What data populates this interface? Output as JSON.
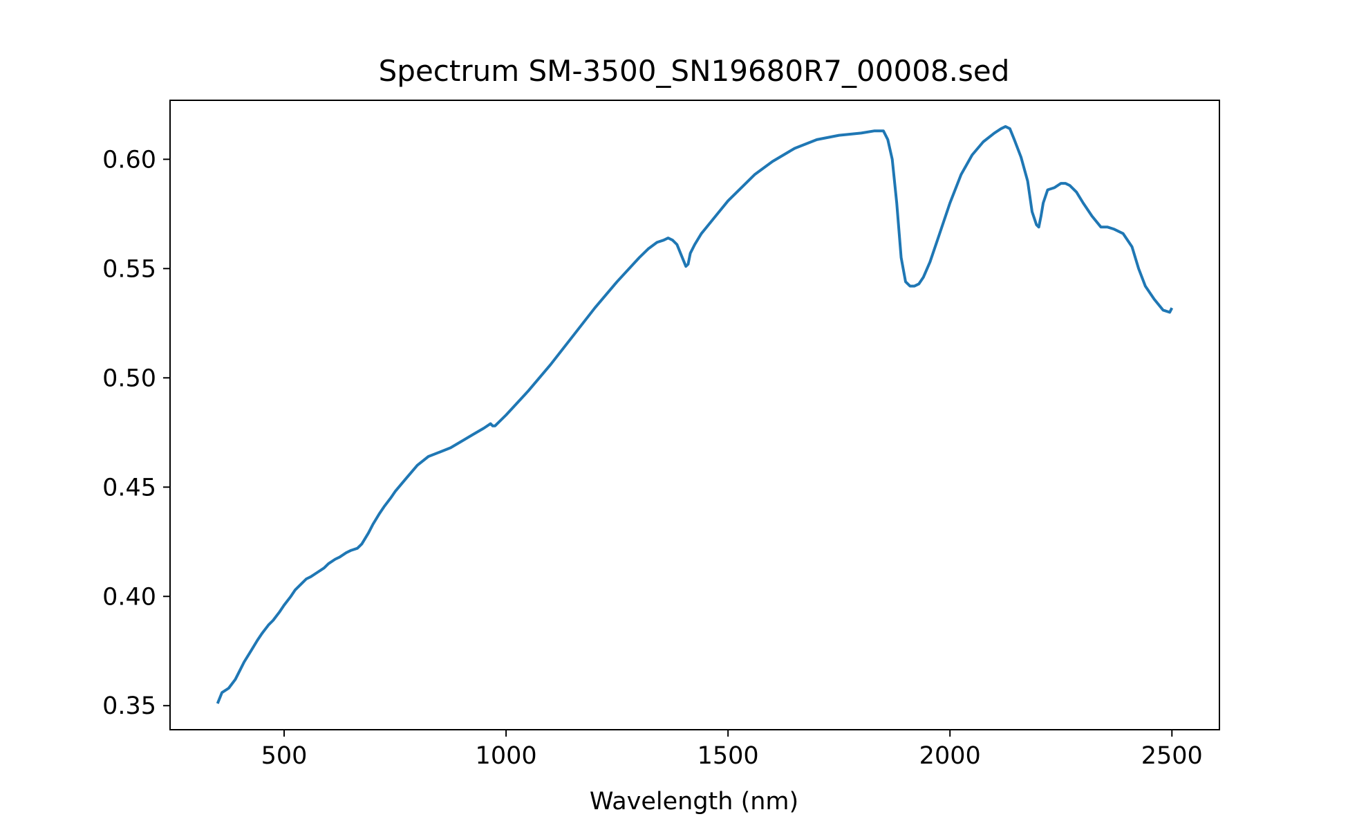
{
  "chart_data": {
    "type": "line",
    "title": "Spectrum SM-3500_SN19680R7_00008.sed",
    "xlabel": "Wavelength (nm)",
    "ylabel": "",
    "xlim": [
      243,
      2607
    ],
    "ylim": [
      0.339,
      0.627
    ],
    "xticks": [
      500,
      1000,
      1500,
      2000,
      2500
    ],
    "xtick_labels": [
      "500",
      "1000",
      "1500",
      "2000",
      "2500"
    ],
    "yticks": [
      0.35,
      0.4,
      0.45,
      0.5,
      0.55,
      0.6
    ],
    "ytick_labels": [
      "0.35",
      "0.40",
      "0.45",
      "0.50",
      "0.55",
      "0.60"
    ],
    "grid": false,
    "legend": "none",
    "colors": {
      "line": "#1f77b4"
    },
    "series": [
      {
        "x": [
          350,
          360,
          375,
          390,
          400,
          410,
          425,
          440,
          450,
          465,
          475,
          490,
          500,
          515,
          525,
          540,
          550,
          560,
          575,
          590,
          600,
          615,
          625,
          640,
          650,
          665,
          675,
          690,
          700,
          715,
          725,
          740,
          750,
          775,
          800,
          825,
          850,
          875,
          900,
          925,
          950,
          965,
          970,
          975,
          1000,
          1050,
          1100,
          1150,
          1200,
          1250,
          1300,
          1320,
          1340,
          1355,
          1365,
          1375,
          1385,
          1395,
          1405,
          1410,
          1415,
          1425,
          1440,
          1460,
          1480,
          1500,
          1530,
          1560,
          1600,
          1650,
          1700,
          1750,
          1800,
          1830,
          1845,
          1850,
          1860,
          1870,
          1880,
          1890,
          1900,
          1910,
          1920,
          1930,
          1940,
          1955,
          1975,
          2000,
          2025,
          2050,
          2075,
          2100,
          2115,
          2125,
          2135,
          2145,
          2160,
          2175,
          2185,
          2195,
          2200,
          2205,
          2210,
          2220,
          2235,
          2250,
          2260,
          2270,
          2285,
          2300,
          2320,
          2340,
          2355,
          2370,
          2390,
          2410,
          2425,
          2440,
          2460,
          2480,
          2495,
          2500
        ],
        "y": [
          0.351,
          0.356,
          0.358,
          0.362,
          0.366,
          0.37,
          0.375,
          0.38,
          0.383,
          0.387,
          0.389,
          0.393,
          0.396,
          0.4,
          0.403,
          0.406,
          0.408,
          0.409,
          0.411,
          0.413,
          0.415,
          0.417,
          0.418,
          0.42,
          0.421,
          0.422,
          0.424,
          0.429,
          0.433,
          0.438,
          0.441,
          0.445,
          0.448,
          0.454,
          0.46,
          0.464,
          0.466,
          0.468,
          0.471,
          0.474,
          0.477,
          0.479,
          0.478,
          0.478,
          0.483,
          0.494,
          0.506,
          0.519,
          0.532,
          0.544,
          0.555,
          0.559,
          0.562,
          0.563,
          0.564,
          0.563,
          0.561,
          0.556,
          0.551,
          0.552,
          0.557,
          0.561,
          0.566,
          0.571,
          0.576,
          0.581,
          0.587,
          0.593,
          0.599,
          0.605,
          0.609,
          0.611,
          0.612,
          0.613,
          0.613,
          0.613,
          0.609,
          0.6,
          0.58,
          0.555,
          0.544,
          0.542,
          0.542,
          0.543,
          0.546,
          0.553,
          0.565,
          0.58,
          0.593,
          0.602,
          0.608,
          0.612,
          0.614,
          0.615,
          0.614,
          0.609,
          0.601,
          0.59,
          0.576,
          0.57,
          0.569,
          0.574,
          0.58,
          0.586,
          0.587,
          0.589,
          0.589,
          0.588,
          0.585,
          0.58,
          0.574,
          0.569,
          0.569,
          0.568,
          0.566,
          0.56,
          0.55,
          0.542,
          0.536,
          0.531,
          0.53,
          0.532
        ]
      }
    ]
  }
}
